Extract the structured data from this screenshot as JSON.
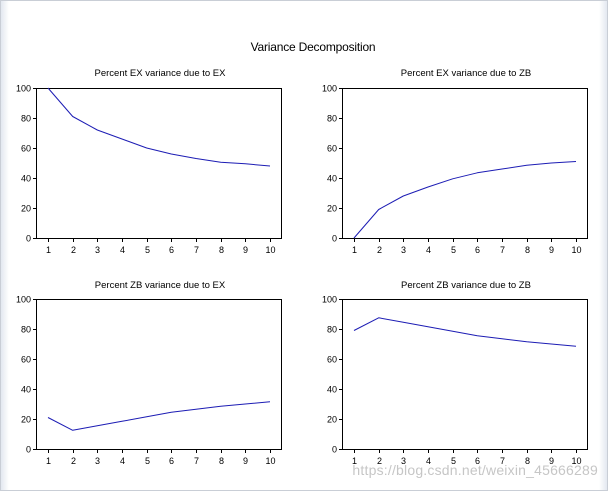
{
  "page": {
    "title": "Variance Decomposition",
    "watermark": "https://blog.csdn.net/weixin_45666289"
  },
  "style": {
    "line_color": "#1c1cb4",
    "axis_color": "#000000"
  },
  "chart_data": [
    {
      "type": "line",
      "title": "Percent EX variance due to EX",
      "x": [
        1,
        2,
        3,
        4,
        5,
        6,
        7,
        8,
        9,
        10
      ],
      "series": [
        {
          "name": "EX",
          "values": [
            100,
            81,
            72,
            66,
            60,
            56,
            53,
            50.5,
            49.5,
            48
          ]
        }
      ],
      "ylim": [
        0,
        100
      ],
      "yticks": [
        0,
        20,
        40,
        60,
        80,
        100
      ],
      "xlabel": "",
      "ylabel": "",
      "grid": false
    },
    {
      "type": "line",
      "title": "Percent EX variance due to ZB",
      "x": [
        1,
        2,
        3,
        4,
        5,
        6,
        7,
        8,
        9,
        10
      ],
      "series": [
        {
          "name": "ZB",
          "values": [
            0,
            19,
            28,
            34,
            39.5,
            43.5,
            46,
            48.5,
            50,
            51
          ]
        }
      ],
      "ylim": [
        0,
        100
      ],
      "yticks": [
        0,
        20,
        40,
        60,
        80,
        100
      ],
      "xlabel": "",
      "ylabel": "",
      "grid": false
    },
    {
      "type": "line",
      "title": "Percent ZB variance due to EX",
      "x": [
        1,
        2,
        3,
        4,
        5,
        6,
        7,
        8,
        9,
        10
      ],
      "series": [
        {
          "name": "EX",
          "values": [
            21,
            12.5,
            15.5,
            18.5,
            21.5,
            24.5,
            26.5,
            28.5,
            30,
            31.5
          ]
        }
      ],
      "ylim": [
        0,
        100
      ],
      "yticks": [
        0,
        20,
        40,
        60,
        80,
        100
      ],
      "xlabel": "",
      "ylabel": "",
      "grid": false
    },
    {
      "type": "line",
      "title": "Percent ZB variance due to ZB",
      "x": [
        1,
        2,
        3,
        4,
        5,
        6,
        7,
        8,
        9,
        10
      ],
      "series": [
        {
          "name": "ZB",
          "values": [
            79,
            87.5,
            84.5,
            81.5,
            78.5,
            75.5,
            73.5,
            71.5,
            70,
            68.5
          ]
        }
      ],
      "ylim": [
        0,
        100
      ],
      "yticks": [
        0,
        20,
        40,
        60,
        80,
        100
      ],
      "xlabel": "",
      "ylabel": "",
      "grid": false
    }
  ]
}
